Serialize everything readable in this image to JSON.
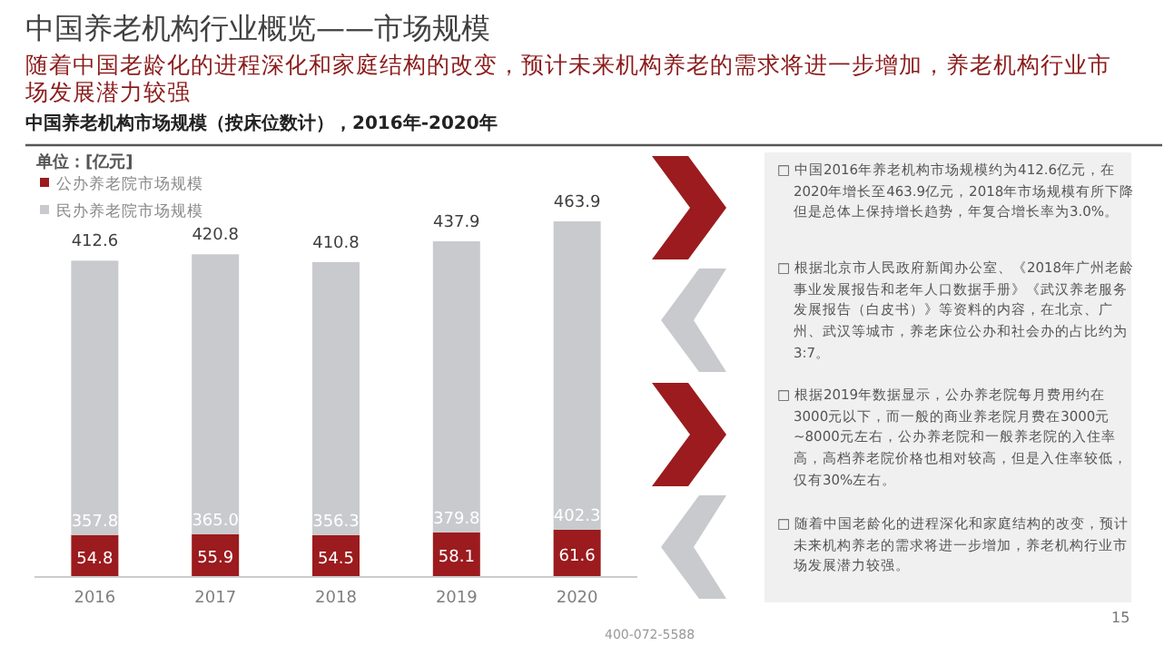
{
  "chart_data": {
    "type": "bar",
    "stacked": true,
    "title": "中国养老机构行业概览——市场规模",
    "subtitle": "随着中国老龄化的进程深化和家庭结构的改变，预计未来机构养老的需求将进一步增加，养老机构行业市场发展潜力较强",
    "categories": [
      "2016",
      "2017",
      "2018",
      "2019",
      "2020"
    ],
    "series": [
      {
        "name": "公办养老院市场规模",
        "color": "#9b1b1e",
        "values": [
          54.8,
          55.9,
          54.5,
          58.1,
          61.6
        ],
        "value_labels": [
          "54.8",
          "55.9",
          "54.5",
          "58.1",
          "61.6"
        ]
      },
      {
        "name": "民办养老院市场规模",
        "color": "#c8cacd",
        "values": [
          357.8,
          365.0,
          356.3,
          379.8,
          402.3
        ],
        "value_labels": [
          "357.8",
          "365.0",
          "356.3",
          "379.8",
          "402.3"
        ]
      }
    ],
    "totals": [
      "412.6",
      "420.8",
      "410.8",
      "437.9",
      "463.9"
    ],
    "legend": "top left",
    "grid": false,
    "annotations": [
      "中国养老机构市场规模（按床位数计），2016年-2020年",
      "单位：[亿元]",
      "□ 中国2016年养老机构市场规模约为412.6亿元，在2020年增长至463.9亿元，2018年市场规模有所下降但是总体上保持增长趋势，年复合增长率为3.0%。",
      "□ 根据北京市人民政府新闻办公室、《2018年广州老龄事业发展报告和老年人口数据手册》《武汉养老服务发展报告（白皮书）》等资料的内容，在北京、广州、武汉等城市，养老床位公办和社会办的占比约为3:7。",
      "□ 根据2019年数据显示，公办养老院每月费用约在3000元以下，而一般的商业养老院月费在3000元~8000元左右，公办养老院和一般养老院的入住率高，高档养老院价格也相对较高，但是入住率较低，仅有30%左右。",
      "□ 随着中国老龄化的进程深化和家庭结构的改变，预计未来机构养老的需求将进一步增加，养老机构行业市场发展潜力较强。",
      "400-072-5588",
      "15"
    ]
  }
}
